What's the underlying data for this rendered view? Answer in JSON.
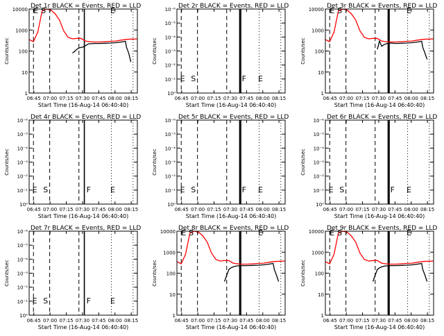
{
  "colors": {
    "events": "#000000",
    "lld": "#ff0000",
    "background": "#ffffff"
  },
  "common": {
    "xlabel": "Start Time (16-Aug-14 06:40:40)",
    "ylabel": "Counts/sec",
    "x_ticks": [
      "06:45",
      "07:00",
      "07:15",
      "07:30",
      "07:45",
      "08:00",
      "08:15"
    ],
    "y_ticks_linear": [
      "1",
      "10",
      "100",
      "1000",
      "10000"
    ],
    "y_ticks_exp": [
      "10⁰",
      "10⁻¹",
      "10⁻²",
      "10⁻³",
      "10⁻⁴",
      "10⁻⁵",
      "10⁻⁶"
    ]
  },
  "chart_data": [
    {
      "type": "line",
      "title": "Det 1r BLACK = Events, RED = LLD",
      "x_unit": "minutes after 06:40:40",
      "xlim": [
        0,
        100
      ],
      "y_scale": "log",
      "ylim": [
        1,
        10000
      ],
      "y_tick_style": "linear",
      "markers": {
        "dashed": [
          4,
          19,
          46
        ],
        "solid": [
          51
        ],
        "dotted": [
          76,
          96
        ]
      },
      "letters": [
        {
          "text": "E",
          "x": 4,
          "y": 8000
        },
        {
          "text": "S",
          "x": 11,
          "y": 8000
        },
        {
          "text": "E",
          "x": 75,
          "y": 8000
        }
      ],
      "series": [
        {
          "name": "Events",
          "color": "#000000",
          "x": [
            40,
            42,
            44,
            46,
            48,
            50,
            52,
            55,
            60,
            65,
            70,
            75,
            80,
            85,
            89,
            90,
            92,
            94
          ],
          "y": [
            80,
            95,
            120,
            140,
            150,
            155,
            180,
            220,
            230,
            230,
            235,
            240,
            250,
            270,
            290,
            150,
            80,
            30
          ]
        },
        {
          "name": "LLD",
          "color": "#ff0000",
          "x": [
            0,
            4,
            8,
            12,
            16,
            20,
            24,
            28,
            32,
            36,
            40,
            44,
            48,
            52,
            56,
            60,
            65,
            70,
            75,
            80,
            85,
            90,
            95,
            100
          ],
          "y": [
            350,
            280,
            800,
            8000,
            10000,
            9000,
            6000,
            3000,
            900,
            450,
            380,
            400,
            400,
            300,
            280,
            270,
            270,
            280,
            290,
            300,
            330,
            360,
            370,
            380
          ]
        }
      ]
    },
    {
      "type": "line",
      "title": "Det 2r BLACK = Events, RED = LLD",
      "x_unit": "minutes after 06:40:40",
      "xlim": [
        0,
        100
      ],
      "y_scale": "log",
      "ylim": [
        1,
        1e-06
      ],
      "y_tick_style": "exp",
      "markers": {
        "dashed": [
          4,
          19,
          46
        ],
        "solid": [
          58,
          59
        ],
        "dotted": [
          76,
          96
        ]
      },
      "letters": [
        {
          "text": "E",
          "x": 3,
          "y": 0.1
        },
        {
          "text": "S",
          "x": 13,
          "y": 0.1
        },
        {
          "text": "F",
          "x": 60,
          "y": 0.1
        },
        {
          "text": "E",
          "x": 75,
          "y": 0.1
        }
      ],
      "series": []
    },
    {
      "type": "line",
      "title": "Det 3r BLACK = Events, RED = LLD",
      "x_unit": "minutes after 06:40:40",
      "xlim": [
        0,
        100
      ],
      "y_scale": "log",
      "ylim": [
        1,
        10000
      ],
      "y_tick_style": "linear",
      "markers": {
        "dashed": [
          4,
          19,
          46
        ],
        "solid": [
          58,
          59
        ],
        "dotted": [
          76,
          96
        ]
      },
      "letters": [
        {
          "text": "E",
          "x": 4,
          "y": 8000
        },
        {
          "text": "S",
          "x": 11,
          "y": 8000
        },
        {
          "text": "E",
          "x": 75,
          "y": 8000
        }
      ],
      "series": [
        {
          "name": "Events",
          "color": "#000000",
          "x": [
            48,
            50,
            52,
            54,
            57,
            60,
            65,
            70,
            75,
            80,
            85,
            89,
            90,
            92,
            94
          ],
          "y": [
            120,
            300,
            170,
            200,
            230,
            240,
            230,
            235,
            240,
            250,
            270,
            290,
            150,
            80,
            40
          ]
        },
        {
          "name": "LLD",
          "color": "#ff0000",
          "x": [
            0,
            4,
            8,
            12,
            16,
            20,
            24,
            28,
            32,
            36,
            40,
            44,
            48,
            52,
            56,
            60,
            65,
            70,
            75,
            80,
            85,
            90,
            95,
            100
          ],
          "y": [
            350,
            280,
            800,
            8000,
            10000,
            9000,
            6000,
            3000,
            900,
            450,
            380,
            400,
            400,
            300,
            280,
            270,
            270,
            280,
            290,
            300,
            330,
            360,
            370,
            380
          ]
        }
      ]
    },
    {
      "type": "line",
      "title": "Det 4r BLACK = Events, RED = LLD",
      "x_unit": "minutes after 06:40:40",
      "xlim": [
        0,
        100
      ],
      "y_scale": "log",
      "ylim": [
        1,
        1e-06
      ],
      "y_tick_style": "exp",
      "markers": {
        "dashed": [
          4,
          19,
          46
        ],
        "solid": [
          51
        ],
        "dotted": [
          76,
          96
        ]
      },
      "letters": [
        {
          "text": "E",
          "x": 3,
          "y": 0.1
        },
        {
          "text": "S",
          "x": 13,
          "y": 0.1
        },
        {
          "text": "F",
          "x": 53,
          "y": 0.1
        },
        {
          "text": "E",
          "x": 75,
          "y": 0.1
        }
      ],
      "series": []
    },
    {
      "type": "line",
      "title": "Det 5r BLACK = Events, RED = LLD",
      "x_unit": "minutes after 06:40:40",
      "xlim": [
        0,
        100
      ],
      "y_scale": "log",
      "ylim": [
        1,
        1e-06
      ],
      "y_tick_style": "exp",
      "markers": {
        "dashed": [
          4,
          19,
          46
        ],
        "solid": [
          58,
          59
        ],
        "dotted": [
          76,
          96
        ]
      },
      "letters": [
        {
          "text": "E",
          "x": 3,
          "y": 0.1
        },
        {
          "text": "S",
          "x": 13,
          "y": 0.1
        },
        {
          "text": "F",
          "x": 60,
          "y": 0.1
        },
        {
          "text": "E",
          "x": 75,
          "y": 0.1
        }
      ],
      "series": []
    },
    {
      "type": "line",
      "title": "Det 6r BLACK = Events, RED = LLD",
      "x_unit": "minutes after 06:40:40",
      "xlim": [
        0,
        100
      ],
      "y_scale": "log",
      "ylim": [
        1,
        1e-06
      ],
      "y_tick_style": "exp",
      "markers": {
        "dashed": [
          4,
          19,
          46
        ],
        "solid": [
          58,
          59
        ],
        "dotted": [
          76,
          96
        ]
      },
      "letters": [
        {
          "text": "E",
          "x": 3,
          "y": 0.1
        },
        {
          "text": "S",
          "x": 13,
          "y": 0.1
        },
        {
          "text": "F",
          "x": 60,
          "y": 0.1
        },
        {
          "text": "E",
          "x": 75,
          "y": 0.1
        }
      ],
      "series": []
    },
    {
      "type": "line",
      "title": "Det 7r BLACK = Events, RED = LLD",
      "x_unit": "minutes after 06:40:40",
      "xlim": [
        0,
        100
      ],
      "y_scale": "log",
      "ylim": [
        1,
        1e-06
      ],
      "y_tick_style": "exp",
      "markers": {
        "dashed": [
          4,
          19,
          46
        ],
        "solid": [
          51
        ],
        "dotted": [
          76,
          96
        ]
      },
      "letters": [
        {
          "text": "E",
          "x": 3,
          "y": 0.1
        },
        {
          "text": "S",
          "x": 13,
          "y": 0.1
        },
        {
          "text": "F",
          "x": 53,
          "y": 0.1
        },
        {
          "text": "E",
          "x": 75,
          "y": 0.1
        }
      ],
      "series": []
    },
    {
      "type": "line",
      "title": "Det 8r BLACK = Events, RED = LLD",
      "x_unit": "minutes after 06:40:40",
      "xlim": [
        0,
        100
      ],
      "y_scale": "log",
      "ylim": [
        1,
        10000
      ],
      "y_tick_style": "linear",
      "markers": {
        "dashed": [
          4,
          19,
          46
        ],
        "solid": [
          58,
          59
        ],
        "dotted": [
          76,
          96
        ]
      },
      "letters": [
        {
          "text": "E",
          "x": 4,
          "y": 8000
        },
        {
          "text": "S",
          "x": 11,
          "y": 8000
        },
        {
          "text": "E",
          "x": 75,
          "y": 8000
        }
      ],
      "series": [
        {
          "name": "Events",
          "color": "#000000",
          "x": [
            44,
            46,
            48,
            50,
            52,
            55,
            60,
            65,
            70,
            75,
            80,
            85,
            89,
            90,
            92,
            94
          ],
          "y": [
            40,
            80,
            150,
            180,
            200,
            220,
            230,
            230,
            235,
            240,
            250,
            270,
            290,
            150,
            80,
            40
          ]
        },
        {
          "name": "LLD",
          "color": "#ff0000",
          "x": [
            0,
            4,
            8,
            12,
            16,
            20,
            24,
            28,
            32,
            36,
            40,
            44,
            48,
            52,
            56,
            60,
            65,
            70,
            75,
            80,
            85,
            90,
            95,
            100
          ],
          "y": [
            350,
            280,
            800,
            8000,
            10000,
            9000,
            6000,
            3000,
            900,
            450,
            380,
            400,
            400,
            300,
            280,
            270,
            270,
            280,
            290,
            300,
            330,
            360,
            370,
            380
          ]
        }
      ]
    },
    {
      "type": "line",
      "title": "Det 9r BLACK = Events, RED = LLD",
      "x_unit": "minutes after 06:40:40",
      "xlim": [
        0,
        100
      ],
      "y_scale": "log",
      "ylim": [
        1,
        10000
      ],
      "y_tick_style": "linear",
      "markers": {
        "dashed": [
          4,
          19,
          46
        ],
        "solid": [
          58,
          59
        ],
        "dotted": [
          76,
          96
        ]
      },
      "letters": [
        {
          "text": "E",
          "x": 4,
          "y": 8000
        },
        {
          "text": "S",
          "x": 11,
          "y": 8000
        },
        {
          "text": "E",
          "x": 75,
          "y": 8000
        }
      ],
      "series": [
        {
          "name": "Events",
          "color": "#000000",
          "x": [
            44,
            46,
            48,
            50,
            52,
            55,
            60,
            65,
            70,
            75,
            80,
            85,
            89,
            90,
            92,
            94
          ],
          "y": [
            40,
            80,
            150,
            180,
            200,
            220,
            230,
            230,
            235,
            240,
            250,
            270,
            290,
            150,
            80,
            40
          ]
        },
        {
          "name": "LLD",
          "color": "#ff0000",
          "x": [
            0,
            4,
            8,
            12,
            16,
            20,
            24,
            28,
            32,
            36,
            40,
            44,
            48,
            52,
            56,
            60,
            65,
            70,
            75,
            80,
            85,
            90,
            95,
            100
          ],
          "y": [
            350,
            280,
            800,
            8000,
            10000,
            9000,
            6000,
            3000,
            900,
            450,
            380,
            400,
            400,
            300,
            280,
            270,
            270,
            280,
            290,
            300,
            330,
            360,
            370,
            380
          ]
        }
      ]
    }
  ]
}
